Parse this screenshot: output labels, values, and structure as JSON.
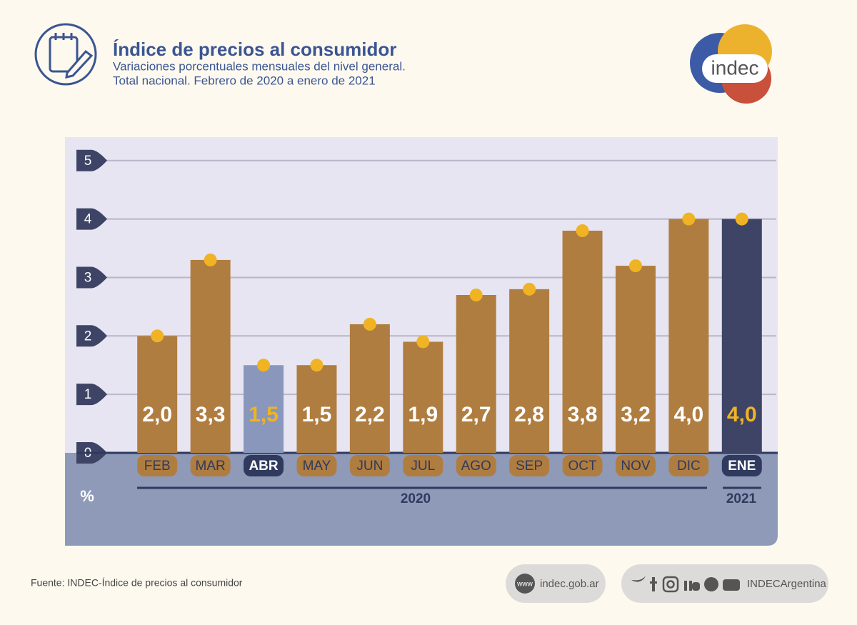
{
  "chart_data": {
    "type": "bar",
    "title": "Índice de precios al consumidor",
    "subtitle": [
      "Variaciones porcentuales mensuales del nivel general.",
      "Total nacional. Febrero de 2020 a enero de 2021"
    ],
    "logo": "indec",
    "unit_label": "%",
    "categories": [
      "FEB",
      "MAR",
      "ABR",
      "MAY",
      "JUN",
      "JUL",
      "AGO",
      "SEP",
      "OCT",
      "NOV",
      "DIC",
      "ENE"
    ],
    "values": [
      2.0,
      3.3,
      1.5,
      1.5,
      2.2,
      1.9,
      2.7,
      2.8,
      3.8,
      3.2,
      4.0,
      4.0
    ],
    "value_labels": [
      "2,0",
      "3,3",
      "1,5",
      "1,5",
      "2,2",
      "1,9",
      "2,7",
      "2,8",
      "3,8",
      "3,2",
      "4,0",
      "4,0"
    ],
    "color": "#b07d40",
    "colors": [
      "#b07d40",
      "#b07d40",
      "#8a97bd",
      "#b07d40",
      "#b07d40",
      "#b07d40",
      "#b07d40",
      "#b07d40",
      "#b07d40",
      "#b07d40",
      "#b07d40",
      "#3d4466"
    ],
    "point_color": "#f0b323",
    "years": [
      "2020",
      "2021"
    ],
    "ylim": [
      0,
      5.4
    ],
    "yticks": [
      0,
      1,
      2,
      3,
      4,
      5
    ],
    "grid": true,
    "source": "Fuente: INDEC-Índice de precios al consumidor",
    "website": "indec.gob.ar",
    "www": "www",
    "social": "INDECArgentina"
  }
}
